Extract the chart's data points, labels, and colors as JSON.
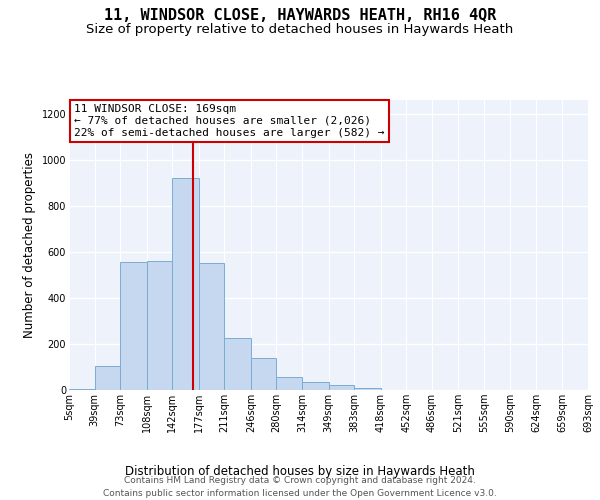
{
  "title": "11, WINDSOR CLOSE, HAYWARDS HEATH, RH16 4QR",
  "subtitle": "Size of property relative to detached houses in Haywards Heath",
  "xlabel": "Distribution of detached houses by size in Haywards Heath",
  "ylabel": "Number of detached properties",
  "bin_edges": [
    5,
    39,
    73,
    108,
    142,
    177,
    211,
    246,
    280,
    314,
    349,
    383,
    418,
    452,
    486,
    521,
    555,
    590,
    624,
    659,
    693
  ],
  "bin_labels": [
    "5sqm",
    "39sqm",
    "73sqm",
    "108sqm",
    "142sqm",
    "177sqm",
    "211sqm",
    "246sqm",
    "280sqm",
    "314sqm",
    "349sqm",
    "383sqm",
    "418sqm",
    "452sqm",
    "486sqm",
    "521sqm",
    "555sqm",
    "590sqm",
    "624sqm",
    "659sqm",
    "693sqm"
  ],
  "bar_heights": [
    5,
    105,
    555,
    560,
    920,
    550,
    225,
    140,
    55,
    35,
    20,
    10,
    0,
    0,
    0,
    0,
    0,
    0,
    0,
    0
  ],
  "bar_color": "#c5d8f0",
  "bar_edgecolor": "#7aadd4",
  "vline_x": 169,
  "vline_color": "#cc0000",
  "ylim": [
    0,
    1260
  ],
  "annotation_text": "11 WINDSOR CLOSE: 169sqm\n← 77% of detached houses are smaller (2,026)\n22% of semi-detached houses are larger (582) →",
  "footer_line1": "Contains HM Land Registry data © Crown copyright and database right 2024.",
  "footer_line2": "Contains public sector information licensed under the Open Government Licence v3.0.",
  "background_color": "#eef2fa",
  "grid_color": "#ffffff",
  "title_fontsize": 11,
  "subtitle_fontsize": 9.5,
  "axis_label_fontsize": 8.5,
  "tick_fontsize": 7,
  "annotation_fontsize": 8,
  "footer_fontsize": 6.5,
  "yticks": [
    0,
    200,
    400,
    600,
    800,
    1000,
    1200
  ]
}
